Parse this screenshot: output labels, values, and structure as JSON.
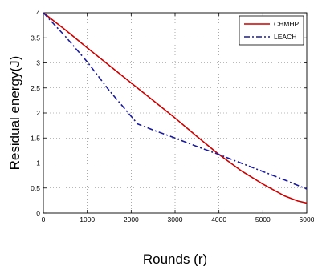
{
  "chart_data": {
    "type": "line",
    "title": "",
    "xlabel": "Rounds (r)",
    "ylabel": "Residual energy(J)",
    "xlim": [
      0,
      6000
    ],
    "ylim": [
      0,
      4
    ],
    "x_ticks": [
      0,
      1000,
      2000,
      3000,
      4000,
      5000,
      6000
    ],
    "x_tick_labels": [
      "0",
      "1000",
      "2000",
      "3000",
      "4000",
      "5000",
      "6000"
    ],
    "y_ticks": [
      0,
      0.5,
      1,
      1.5,
      2,
      2.5,
      3,
      3.5,
      4
    ],
    "y_tick_labels": [
      "0",
      "0.5",
      "1",
      "1.5",
      "2",
      "2.5",
      "3",
      "3.5",
      "4"
    ],
    "grid": true,
    "legend_position": "top-right",
    "series": [
      {
        "name": "CHMHP",
        "color": "#cc0000",
        "style": "solid",
        "x": [
          0,
          500,
          1000,
          1500,
          2000,
          2500,
          3000,
          3500,
          4000,
          4500,
          5000,
          5500,
          5800,
          6000
        ],
        "y": [
          4.0,
          3.66,
          3.3,
          2.95,
          2.6,
          2.25,
          1.9,
          1.53,
          1.17,
          0.85,
          0.58,
          0.34,
          0.24,
          0.2
        ]
      },
      {
        "name": "LEACH",
        "color": "#1a1a9e",
        "style": "dashdot",
        "x": [
          0,
          500,
          1000,
          1500,
          2150,
          2500,
          3000,
          3500,
          4000,
          4500,
          5000,
          5500,
          6000
        ],
        "y": [
          4.0,
          3.53,
          3.02,
          2.45,
          1.78,
          1.66,
          1.5,
          1.33,
          1.17,
          1.0,
          0.83,
          0.66,
          0.48
        ]
      }
    ]
  }
}
